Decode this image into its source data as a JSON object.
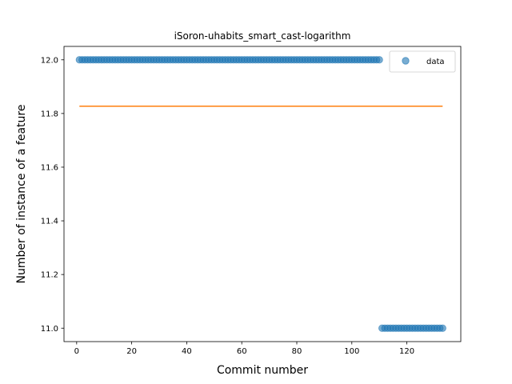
{
  "chart_data": {
    "type": "scatter",
    "title": "iSoron-uhabits_smart_cast-logarithm",
    "xlabel": "Commit number",
    "ylabel": "Number of instance of a feature",
    "xlim": [
      -4.6,
      139.6
    ],
    "ylim": [
      10.95,
      12.05
    ],
    "xticks": [
      0,
      20,
      40,
      60,
      80,
      100,
      120
    ],
    "yticks": [
      11.0,
      11.2,
      11.4,
      11.6,
      11.8,
      12.0
    ],
    "ytick_decimals": 1,
    "grid": false,
    "legend": {
      "position": "top-right",
      "entries": [
        "data"
      ]
    },
    "series": [
      {
        "name": "data",
        "kind": "scatter",
        "color": "#1f77b4",
        "segments": [
          {
            "x_from": 1,
            "x_to": 110,
            "y": 12.0
          },
          {
            "x_from": 111,
            "x_to": 133,
            "y": 11.0
          }
        ]
      },
      {
        "kind": "line",
        "color": "#ff7f0e",
        "x": [
          1,
          133
        ],
        "y": [
          11.827,
          11.827
        ]
      }
    ]
  }
}
